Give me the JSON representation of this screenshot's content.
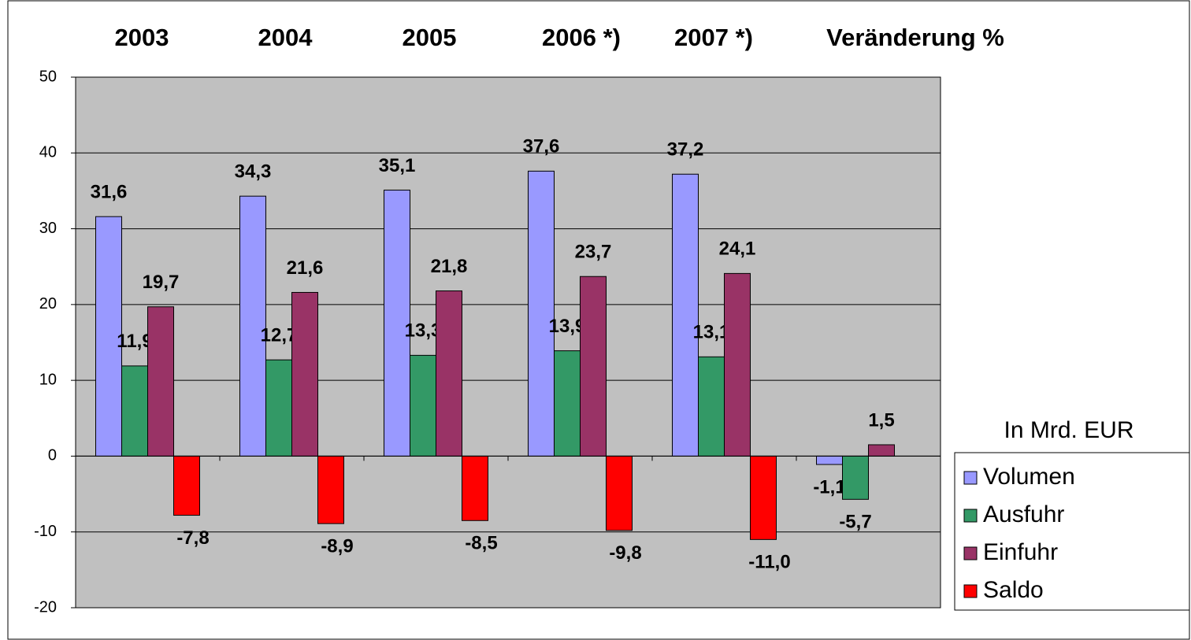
{
  "chart_data": {
    "type": "bar",
    "categories": [
      "2003",
      "2004",
      "2005",
      "2006 *)",
      "2007 *)",
      "Veränderung %"
    ],
    "series": [
      {
        "name": "Volumen",
        "color": "#9999ff",
        "values": [
          31.6,
          34.3,
          35.1,
          37.6,
          37.2,
          -1.1
        ],
        "value_labels": [
          "31,6",
          "34,3",
          "35,1",
          "37,6",
          "37,2",
          "-1,1"
        ]
      },
      {
        "name": "Ausfuhr",
        "color": "#339966",
        "values": [
          11.9,
          12.7,
          13.3,
          13.9,
          13.1,
          -5.7
        ],
        "value_labels": [
          "11,9",
          "12,7",
          "13,3",
          "13,9",
          "13,1",
          "-5,7"
        ]
      },
      {
        "name": "Einfuhr",
        "color": "#993366",
        "values": [
          19.7,
          21.6,
          21.8,
          23.7,
          24.1,
          1.5
        ],
        "value_labels": [
          "19,7",
          "21,6",
          "21,8",
          "23,7",
          "24,1",
          "1,5"
        ]
      },
      {
        "name": "Saldo",
        "color": "#ff0000",
        "values": [
          -7.8,
          -8.9,
          -8.5,
          -9.8,
          -11.0,
          null
        ],
        "value_labels": [
          "-7,8",
          "-8,9",
          "-8,5",
          "-9,8",
          "-11,0",
          null
        ]
      }
    ],
    "annotation": "In Mrd. EUR",
    "ylim": [
      -20,
      50
    ],
    "yticks": [
      -20,
      -10,
      0,
      10,
      20,
      30,
      40,
      50
    ],
    "grid": true,
    "legend": "right"
  }
}
